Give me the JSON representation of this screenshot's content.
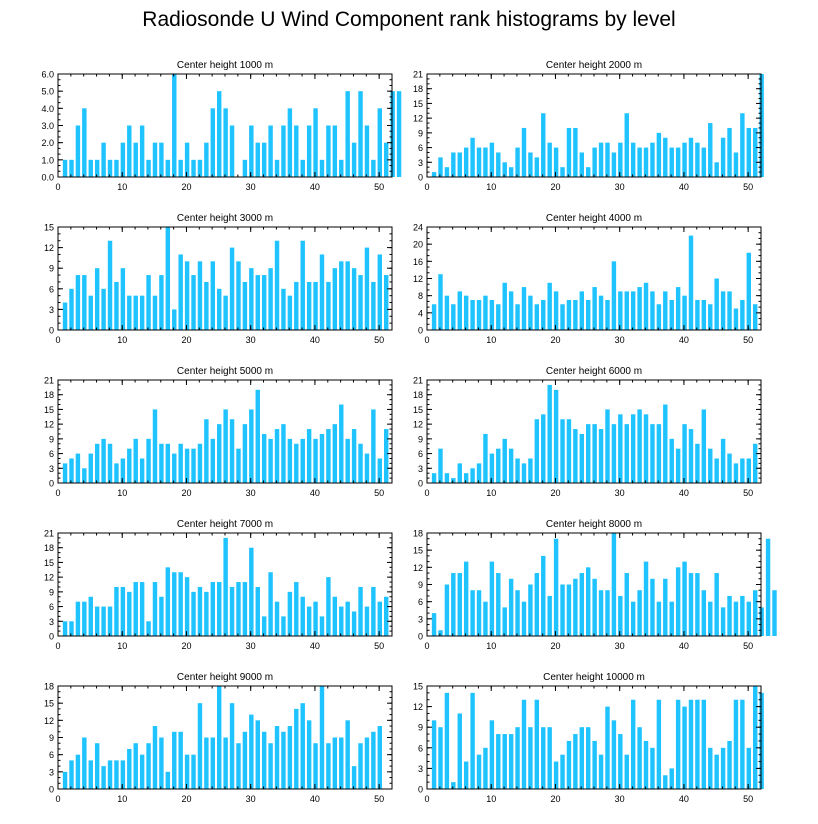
{
  "figure": {
    "title": "Radiosonde U Wind Component rank histograms by level"
  },
  "colors": {
    "bar": "#1ec3ff",
    "axis": "#000000",
    "background": "#ffffff"
  },
  "chart_data": [
    {
      "type": "bar",
      "title": "Center height 1000 m",
      "ylim": [
        0,
        6
      ],
      "yticks": [
        0,
        1,
        2,
        3,
        4,
        5,
        6
      ],
      "yticklabels": [
        "0.0",
        "1.0",
        "2.0",
        "3.0",
        "4.0",
        "5.0",
        "6.0"
      ],
      "xlim": [
        0,
        52
      ],
      "xticks": [
        0,
        10,
        20,
        30,
        40,
        50
      ],
      "values": [
        1,
        1,
        3,
        4,
        1,
        1,
        2,
        1,
        1,
        2,
        3,
        2,
        3,
        1,
        2,
        2,
        1,
        6,
        1,
        2,
        1,
        1,
        2,
        4,
        5,
        4,
        3,
        0,
        1,
        3,
        2,
        2,
        3,
        1,
        3,
        4,
        3,
        1,
        3,
        4,
        1,
        3,
        3,
        1,
        5,
        2,
        5,
        3,
        1,
        4,
        2,
        5,
        5
      ]
    },
    {
      "type": "bar",
      "title": "Center height 2000 m",
      "ylim": [
        0,
        21
      ],
      "yticks": [
        0,
        3,
        6,
        9,
        12,
        15,
        18,
        21
      ],
      "yticklabels": [
        "0",
        "3",
        "6",
        "9",
        "12",
        "15",
        "18",
        "21"
      ],
      "xlim": [
        0,
        52
      ],
      "xticks": [
        0,
        10,
        20,
        30,
        40,
        50
      ],
      "values": [
        1,
        4,
        2,
        5,
        5,
        6,
        8,
        6,
        6,
        7,
        5,
        3,
        2,
        6,
        10,
        5,
        4,
        13,
        7,
        6,
        2,
        10,
        10,
        5,
        2,
        6,
        7,
        7,
        5,
        7,
        13,
        7,
        6,
        6,
        7,
        9,
        8,
        6,
        6,
        7,
        8,
        7,
        6,
        11,
        3,
        8,
        10,
        5,
        13,
        10,
        10,
        21
      ]
    },
    {
      "type": "bar",
      "title": "Center height 3000 m",
      "ylim": [
        0,
        15
      ],
      "yticks": [
        0,
        3,
        6,
        9,
        12,
        15
      ],
      "yticklabels": [
        "0",
        "3",
        "6",
        "9",
        "12",
        "15"
      ],
      "xlim": [
        0,
        52
      ],
      "xticks": [
        0,
        10,
        20,
        30,
        40,
        50
      ],
      "values": [
        4,
        6,
        8,
        8,
        5,
        9,
        6,
        13,
        7,
        9,
        5,
        5,
        5,
        8,
        5,
        8,
        15,
        3,
        11,
        10,
        8,
        10,
        7,
        10,
        6,
        5,
        12,
        10,
        7,
        9,
        8,
        8,
        9,
        13,
        6,
        5,
        7,
        13,
        7,
        7,
        11,
        7,
        9,
        10,
        10,
        9,
        8,
        12,
        7,
        11,
        8
      ]
    },
    {
      "type": "bar",
      "title": "Center height 4000 m",
      "ylim": [
        0,
        24
      ],
      "yticks": [
        0,
        4,
        8,
        12,
        16,
        20,
        24
      ],
      "yticklabels": [
        "0",
        "4",
        "8",
        "12",
        "16",
        "20",
        "24"
      ],
      "xlim": [
        0,
        52
      ],
      "xticks": [
        0,
        10,
        20,
        30,
        40,
        50
      ],
      "values": [
        6,
        13,
        8,
        6,
        9,
        8,
        7,
        7,
        8,
        7,
        6,
        11,
        9,
        6,
        10,
        8,
        6,
        7,
        11,
        9,
        6,
        7,
        7,
        9,
        7,
        10,
        8,
        7,
        16,
        9,
        9,
        9,
        10,
        11,
        9,
        6,
        9,
        7,
        10,
        8,
        22,
        7,
        7,
        6,
        12,
        9,
        9,
        5,
        7,
        18,
        6
      ]
    },
    {
      "type": "bar",
      "title": "Center height 5000 m",
      "ylim": [
        0,
        21
      ],
      "yticks": [
        0,
        3,
        6,
        9,
        12,
        15,
        18,
        21
      ],
      "yticklabels": [
        "0",
        "3",
        "6",
        "9",
        "12",
        "15",
        "18",
        "21"
      ],
      "xlim": [
        0,
        52
      ],
      "xticks": [
        0,
        10,
        20,
        30,
        40,
        50
      ],
      "values": [
        4,
        5,
        6,
        3,
        6,
        8,
        9,
        8,
        4,
        5,
        7,
        9,
        5,
        9,
        15,
        8,
        8,
        6,
        8,
        7,
        7,
        8,
        13,
        9,
        12,
        15,
        13,
        7,
        12,
        15,
        19,
        10,
        9,
        11,
        12,
        9,
        8,
        9,
        11,
        9,
        10,
        11,
        12,
        16,
        9,
        11,
        8,
        6,
        15,
        5,
        11
      ]
    },
    {
      "type": "bar",
      "title": "Center height 6000 m",
      "ylim": [
        0,
        21
      ],
      "yticks": [
        0,
        3,
        6,
        9,
        12,
        15,
        18,
        21
      ],
      "yticklabels": [
        "0",
        "3",
        "6",
        "9",
        "12",
        "15",
        "18",
        "21"
      ],
      "xlim": [
        0,
        52
      ],
      "xticks": [
        0,
        10,
        20,
        30,
        40,
        50
      ],
      "values": [
        2,
        7,
        2,
        1,
        4,
        2,
        3,
        4,
        10,
        6,
        7,
        9,
        7,
        5,
        4,
        5,
        13,
        14,
        20,
        19,
        13,
        13,
        11,
        10,
        12,
        12,
        11,
        15,
        12,
        14,
        12,
        14,
        15,
        14,
        12,
        12,
        16,
        9,
        7,
        12,
        11,
        8,
        15,
        7,
        5,
        9,
        6,
        4,
        5,
        5,
        8
      ]
    },
    {
      "type": "bar",
      "title": "Center height 7000 m",
      "ylim": [
        0,
        21
      ],
      "yticks": [
        0,
        3,
        6,
        9,
        12,
        15,
        18,
        21
      ],
      "yticklabels": [
        "0",
        "3",
        "6",
        "9",
        "12",
        "15",
        "18",
        "21"
      ],
      "xlim": [
        0,
        52
      ],
      "xticks": [
        0,
        10,
        20,
        30,
        40,
        50
      ],
      "values": [
        3,
        3,
        7,
        7,
        8,
        6,
        6,
        6,
        10,
        10,
        9,
        11,
        11,
        3,
        11,
        8,
        14,
        13,
        13,
        12,
        9,
        10,
        9,
        11,
        11,
        20,
        10,
        11,
        11,
        18,
        10,
        4,
        13,
        7,
        4,
        9,
        11,
        8,
        6,
        7,
        4,
        12,
        8,
        6,
        7,
        5,
        10,
        6,
        10,
        7,
        8
      ]
    },
    {
      "type": "bar",
      "title": "Center height 8000 m",
      "ylim": [
        0,
        18
      ],
      "yticks": [
        0,
        3,
        6,
        9,
        12,
        15,
        18
      ],
      "yticklabels": [
        "0",
        "3",
        "6",
        "9",
        "12",
        "15",
        "18"
      ],
      "xlim": [
        0,
        52
      ],
      "xticks": [
        0,
        10,
        20,
        30,
        40,
        50
      ],
      "values": [
        4,
        1,
        9,
        11,
        11,
        13,
        8,
        8,
        6,
        13,
        11,
        5,
        10,
        8,
        6,
        9,
        11,
        14,
        7,
        17,
        9,
        9,
        10,
        11,
        12,
        10,
        8,
        8,
        18,
        7,
        11,
        6,
        8,
        13,
        10,
        6,
        10,
        6,
        12,
        13,
        11,
        11,
        8,
        6,
        11,
        5,
        7,
        6,
        7,
        6,
        8,
        5,
        17,
        8
      ]
    },
    {
      "type": "bar",
      "title": "Center height 9000 m",
      "ylim": [
        0,
        18
      ],
      "yticks": [
        0,
        3,
        6,
        9,
        12,
        15,
        18
      ],
      "yticklabels": [
        "0",
        "3",
        "6",
        "9",
        "12",
        "15",
        "18"
      ],
      "xlim": [
        0,
        52
      ],
      "xticks": [
        0,
        10,
        20,
        30,
        40,
        50
      ],
      "values": [
        3,
        5,
        6,
        9,
        5,
        8,
        4,
        5,
        5,
        5,
        7,
        8,
        6,
        8,
        11,
        9,
        3,
        10,
        10,
        6,
        6,
        15,
        9,
        9,
        18,
        9,
        15,
        8,
        10,
        13,
        12,
        10,
        8,
        11,
        10,
        11,
        14,
        15,
        12,
        8,
        18,
        8,
        9,
        9,
        12,
        4,
        8,
        9,
        10,
        11
      ]
    },
    {
      "type": "bar",
      "title": "Center height 10000 m",
      "ylim": [
        0,
        15
      ],
      "yticks": [
        0,
        3,
        6,
        9,
        12,
        15
      ],
      "yticklabels": [
        "0",
        "3",
        "6",
        "9",
        "12",
        "15"
      ],
      "xlim": [
        0,
        52
      ],
      "xticks": [
        0,
        10,
        20,
        30,
        40,
        50
      ],
      "values": [
        10,
        9,
        14,
        1,
        11,
        4,
        14,
        5,
        6,
        10,
        8,
        8,
        8,
        9,
        13,
        9,
        13,
        9,
        9,
        4,
        5,
        7,
        8,
        9,
        9,
        7,
        5,
        12,
        10,
        8,
        5,
        13,
        9,
        7,
        6,
        13,
        2,
        3,
        13,
        12,
        13,
        13,
        13,
        6,
        5,
        6,
        7,
        13,
        13,
        6,
        15,
        14
      ]
    }
  ]
}
